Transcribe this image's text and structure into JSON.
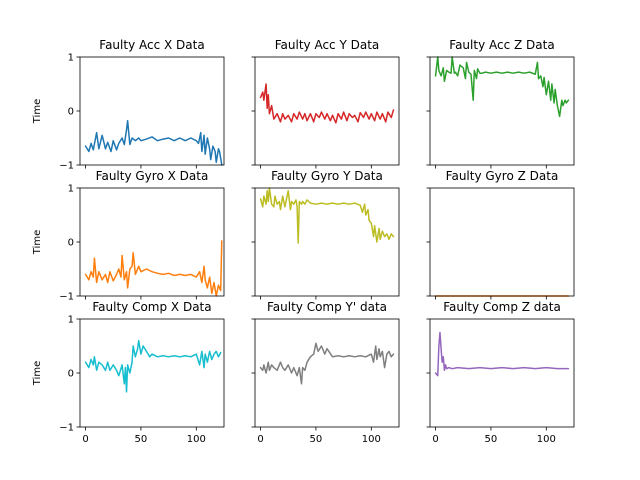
{
  "chart_data": [
    {
      "type": "line",
      "title": "Faulty Acc X Data",
      "ylabel": "Time",
      "xlabel": "",
      "xlim": [
        -5,
        125
      ],
      "ylim": [
        -1,
        1
      ],
      "xticks": [
        0,
        50,
        100
      ],
      "yticks": [
        -1,
        0,
        1
      ],
      "color": "#1f77b4",
      "series": [
        {
          "x": [
            0,
            3,
            5,
            7,
            10,
            12,
            15,
            18,
            20,
            23,
            25,
            28,
            30,
            33,
            35,
            37,
            38,
            40,
            42,
            45,
            48,
            50,
            55,
            60,
            65,
            70,
            75,
            80,
            85,
            90,
            95,
            100,
            102,
            104,
            105,
            107,
            108,
            110,
            112,
            113,
            115,
            117,
            118,
            120,
            121,
            123
          ],
          "y": [
            -0.65,
            -0.75,
            -0.6,
            -0.72,
            -0.4,
            -0.7,
            -0.45,
            -0.7,
            -0.58,
            -0.75,
            -0.55,
            -0.72,
            -0.6,
            -0.5,
            -0.62,
            -0.35,
            -0.18,
            -0.62,
            -0.5,
            -0.55,
            -0.5,
            -0.55,
            -0.52,
            -0.48,
            -0.55,
            -0.52,
            -0.5,
            -0.55,
            -0.5,
            -0.55,
            -0.5,
            -0.55,
            -0.6,
            -0.4,
            -0.75,
            -0.45,
            -0.8,
            -0.5,
            -0.7,
            -0.9,
            -0.65,
            -0.75,
            -0.95,
            -0.7,
            -0.75,
            -1.0
          ]
        }
      ]
    },
    {
      "type": "line",
      "title": "Faulty Acc Y Data",
      "ylabel": "",
      "xlabel": "",
      "xlim": [
        -5,
        125
      ],
      "ylim": [
        -1,
        1
      ],
      "xticks": [
        0,
        50,
        100
      ],
      "yticks": [
        -1,
        0,
        1
      ],
      "color": "#d62728",
      "series": [
        {
          "x": [
            0,
            2,
            3,
            5,
            6,
            7,
            8,
            10,
            12,
            15,
            18,
            20,
            22,
            25,
            28,
            30,
            33,
            35,
            38,
            40,
            42,
            45,
            48,
            50,
            53,
            55,
            58,
            60,
            63,
            65,
            68,
            70,
            73,
            75,
            78,
            80,
            83,
            85,
            88,
            90,
            93,
            95,
            98,
            100,
            103,
            105,
            108,
            110,
            113,
            115,
            118,
            120
          ],
          "y": [
            0.25,
            0.35,
            0.2,
            0.5,
            0.05,
            0.3,
            -0.05,
            0.1,
            -0.15,
            -0.05,
            -0.2,
            -0.05,
            -0.15,
            -0.08,
            -0.2,
            -0.05,
            -0.15,
            -0.02,
            -0.15,
            -0.05,
            -0.18,
            -0.05,
            -0.2,
            -0.05,
            -0.12,
            -0.02,
            -0.15,
            -0.05,
            -0.18,
            -0.08,
            -0.22,
            -0.05,
            -0.15,
            -0.02,
            -0.18,
            -0.05,
            -0.12,
            -0.08,
            -0.2,
            -0.03,
            -0.12,
            -0.02,
            -0.15,
            -0.05,
            -0.18,
            -0.02,
            -0.15,
            -0.05,
            -0.2,
            -0.02,
            -0.12,
            0.02
          ]
        }
      ]
    },
    {
      "type": "line",
      "title": "Faulty Acc Z Data",
      "ylabel": "",
      "xlabel": "",
      "xlim": [
        -5,
        125
      ],
      "ylim": [
        -1,
        1
      ],
      "xticks": [
        0,
        50,
        100
      ],
      "yticks": [
        -1,
        0,
        1
      ],
      "color": "#2ca02c",
      "series": [
        {
          "x": [
            0,
            2,
            3,
            5,
            7,
            8,
            10,
            12,
            14,
            15,
            17,
            18,
            20,
            22,
            25,
            27,
            28,
            30,
            32,
            34,
            35,
            37,
            38,
            40,
            42,
            45,
            50,
            55,
            60,
            65,
            70,
            75,
            80,
            85,
            90,
            92,
            93,
            95,
            97,
            98,
            100,
            102,
            104,
            105,
            107,
            108,
            110,
            112,
            114,
            115,
            117,
            118,
            120
          ],
          "y": [
            0.65,
            1.0,
            0.75,
            0.65,
            0.8,
            0.55,
            0.75,
            0.72,
            0.7,
            1.0,
            0.7,
            0.72,
            0.65,
            0.85,
            0.8,
            0.6,
            0.9,
            0.72,
            0.68,
            0.2,
            0.75,
            0.6,
            0.78,
            0.7,
            0.7,
            0.72,
            0.7,
            0.72,
            0.7,
            0.72,
            0.7,
            0.72,
            0.7,
            0.72,
            0.68,
            0.9,
            0.6,
            0.65,
            0.45,
            0.62,
            0.3,
            0.55,
            0.2,
            0.5,
            0.15,
            0.4,
            0.1,
            -0.1,
            0.2,
            0.1,
            0.2,
            0.15,
            0.2
          ]
        }
      ]
    },
    {
      "type": "line",
      "title": "Faulty Gyro X Data",
      "ylabel": "Time",
      "xlabel": "",
      "xlim": [
        -5,
        125
      ],
      "ylim": [
        -1,
        1
      ],
      "xticks": [
        0,
        50,
        100
      ],
      "yticks": [
        -1,
        0,
        1
      ],
      "color": "#ff7f0e",
      "series": [
        {
          "x": [
            0,
            3,
            5,
            7,
            8,
            10,
            12,
            15,
            18,
            20,
            22,
            25,
            28,
            30,
            32,
            33,
            35,
            37,
            38,
            40,
            42,
            43,
            45,
            48,
            50,
            55,
            60,
            65,
            70,
            75,
            80,
            85,
            90,
            95,
            100,
            103,
            105,
            107,
            108,
            110,
            112,
            114,
            116,
            118,
            120,
            122,
            123
          ],
          "y": [
            -0.6,
            -0.7,
            -0.55,
            -0.65,
            -0.3,
            -0.75,
            -0.55,
            -0.7,
            -0.6,
            -0.75,
            -0.55,
            -0.72,
            -0.6,
            -0.5,
            -0.65,
            -0.25,
            -0.7,
            -0.55,
            -0.85,
            -0.5,
            -0.45,
            -0.2,
            -0.6,
            -0.45,
            -0.55,
            -0.5,
            -0.55,
            -0.58,
            -0.6,
            -0.58,
            -0.62,
            -0.6,
            -0.62,
            -0.6,
            -0.65,
            -0.55,
            -0.75,
            -0.45,
            -0.7,
            -0.85,
            -0.65,
            -0.95,
            -0.75,
            -1.0,
            -0.8,
            -0.9,
            0.02
          ]
        }
      ]
    },
    {
      "type": "line",
      "title": "Faulty Gyro Y Data",
      "ylabel": "",
      "xlabel": "",
      "xlim": [
        -5,
        125
      ],
      "ylim": [
        -1,
        1
      ],
      "xticks": [
        0,
        50,
        100
      ],
      "yticks": [
        -1,
        0,
        1
      ],
      "color": "#bcbd22",
      "series": [
        {
          "x": [
            0,
            2,
            3,
            5,
            6,
            7,
            8,
            10,
            12,
            13,
            15,
            17,
            18,
            20,
            22,
            25,
            27,
            28,
            30,
            32,
            33,
            34,
            35,
            37,
            38,
            40,
            42,
            45,
            50,
            55,
            60,
            65,
            70,
            75,
            80,
            85,
            90,
            92,
            94,
            95,
            97,
            98,
            100,
            102,
            103,
            105,
            107,
            108,
            110,
            112,
            114,
            116,
            118,
            120
          ],
          "y": [
            0.8,
            0.65,
            0.85,
            0.7,
            0.95,
            0.75,
            1.0,
            0.7,
            0.65,
            0.85,
            0.7,
            0.75,
            0.6,
            0.85,
            0.65,
            0.95,
            0.6,
            0.75,
            0.7,
            0.78,
            0.65,
            -0.02,
            0.75,
            0.7,
            0.75,
            0.7,
            0.78,
            0.72,
            0.7,
            0.72,
            0.7,
            0.72,
            0.7,
            0.72,
            0.7,
            0.72,
            0.68,
            0.55,
            0.7,
            0.5,
            0.6,
            0.4,
            0.35,
            0.1,
            0.3,
            0.0,
            0.25,
            0.05,
            0.2,
            0.1,
            0.15,
            0.05,
            0.15,
            0.1
          ]
        }
      ]
    },
    {
      "type": "line",
      "title": "Faulty Gyro Z Data",
      "ylabel": "",
      "xlabel": "",
      "xlim": [
        -5,
        125
      ],
      "ylim": [
        -1,
        1
      ],
      "xticks": [
        0,
        50,
        100
      ],
      "yticks": [
        -1,
        0,
        1
      ],
      "color": "#ff7f0e",
      "series": [
        {
          "x": [
            0,
            20,
            40,
            60,
            80,
            100,
            120
          ],
          "y": [
            -1.0,
            -1.0,
            -1.0,
            -1.0,
            -1.0,
            -1.0,
            -1.0
          ]
        }
      ]
    },
    {
      "type": "line",
      "title": "Faulty Comp X Data",
      "ylabel": "Time",
      "xlabel": "",
      "xlim": [
        -5,
        125
      ],
      "ylim": [
        -1,
        1
      ],
      "xticks": [
        0,
        50,
        100
      ],
      "yticks": [
        -1,
        0,
        1
      ],
      "color": "#17becf",
      "series": [
        {
          "x": [
            0,
            3,
            5,
            7,
            8,
            10,
            12,
            15,
            18,
            20,
            22,
            25,
            28,
            30,
            33,
            35,
            36,
            37,
            38,
            40,
            42,
            43,
            45,
            47,
            48,
            50,
            52,
            55,
            58,
            60,
            65,
            70,
            75,
            80,
            85,
            90,
            95,
            100,
            103,
            105,
            107,
            108,
            110,
            112,
            114,
            116,
            118,
            120,
            122
          ],
          "y": [
            0.2,
            0.1,
            0.25,
            0.15,
            0.3,
            0.05,
            0.2,
            0.15,
            0.05,
            0.2,
            0.05,
            0.15,
            0.05,
            -0.05,
            0.15,
            -0.2,
            0.1,
            -0.35,
            0.15,
            0.0,
            0.2,
            0.5,
            0.3,
            0.45,
            0.6,
            0.35,
            0.5,
            0.4,
            0.3,
            0.35,
            0.3,
            0.32,
            0.3,
            0.32,
            0.3,
            0.32,
            0.3,
            0.35,
            0.15,
            0.4,
            0.1,
            0.35,
            0.2,
            0.4,
            0.25,
            0.35,
            0.4,
            0.3,
            0.38
          ]
        }
      ]
    },
    {
      "type": "line",
      "title": "Faulty Comp Y' data",
      "ylabel": "",
      "xlabel": "",
      "xlim": [
        -5,
        125
      ],
      "ylim": [
        -1,
        1
      ],
      "xticks": [
        0,
        50,
        100
      ],
      "yticks": [
        -1,
        0,
        1
      ],
      "color": "#7f7f7f",
      "series": [
        {
          "x": [
            0,
            2,
            3,
            5,
            7,
            8,
            10,
            12,
            15,
            18,
            20,
            22,
            25,
            28,
            30,
            33,
            35,
            37,
            38,
            40,
            42,
            45,
            48,
            50,
            52,
            55,
            58,
            60,
            65,
            70,
            75,
            80,
            85,
            90,
            95,
            100,
            102,
            104,
            105,
            107,
            108,
            110,
            112,
            114,
            116,
            118,
            120
          ],
          "y": [
            0.1,
            0.05,
            0.15,
            0.0,
            0.2,
            0.05,
            0.15,
            0.1,
            0.05,
            0.2,
            0.1,
            0.05,
            0.15,
            0.0,
            0.1,
            -0.05,
            0.1,
            -0.2,
            0.1,
            0.05,
            0.2,
            0.3,
            0.35,
            0.55,
            0.4,
            0.5,
            0.35,
            0.45,
            0.3,
            0.32,
            0.3,
            0.32,
            0.3,
            0.32,
            0.3,
            0.35,
            0.2,
            0.5,
            0.25,
            0.45,
            0.3,
            0.4,
            0.1,
            0.35,
            0.4,
            0.3,
            0.35
          ]
        }
      ]
    },
    {
      "type": "line",
      "title": "Faulty Comp Z data",
      "ylabel": "",
      "xlabel": "",
      "xlim": [
        -5,
        125
      ],
      "ylim": [
        -1,
        1
      ],
      "xticks": [
        0,
        50,
        100
      ],
      "yticks": [
        -1,
        0,
        1
      ],
      "color": "#9467bd",
      "series": [
        {
          "x": [
            0,
            2,
            3,
            4,
            5,
            6,
            7,
            8,
            9,
            10,
            12,
            15,
            20,
            30,
            40,
            50,
            60,
            70,
            80,
            90,
            100,
            110,
            120
          ],
          "y": [
            0.0,
            -0.05,
            0.5,
            0.75,
            0.45,
            0.2,
            0.3,
            0.05,
            0.15,
            0.08,
            0.1,
            0.08,
            0.1,
            0.08,
            0.1,
            0.08,
            0.1,
            0.08,
            0.1,
            0.08,
            0.1,
            0.08,
            0.08
          ]
        }
      ]
    }
  ]
}
